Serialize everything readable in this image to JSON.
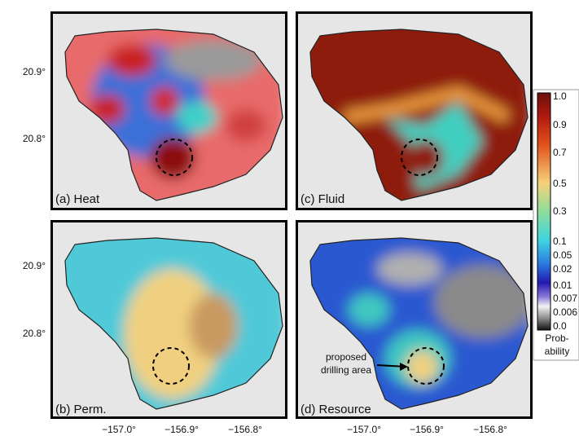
{
  "panels": [
    {
      "label": "(a) Heat"
    },
    {
      "label": "(c) Fluid"
    },
    {
      "label": "(b) Perm."
    },
    {
      "label": "(d) Resource"
    }
  ],
  "axes": {
    "y_ticks": [
      "20.9°",
      "20.8°"
    ],
    "x_ticks": [
      "−157.0°",
      "−156.9°",
      "−156.8°"
    ]
  },
  "colorbar": {
    "labels": [
      "1.0",
      "0.9",
      "0.7",
      "0.5",
      "0.3",
      "0.1",
      "0.05",
      "0.02",
      "0.01",
      "0.007",
      "0.006",
      "0.0"
    ],
    "title": [
      "Prob-",
      "ability"
    ]
  },
  "annotation": {
    "lines": [
      "proposed",
      "drilling area"
    ]
  }
}
